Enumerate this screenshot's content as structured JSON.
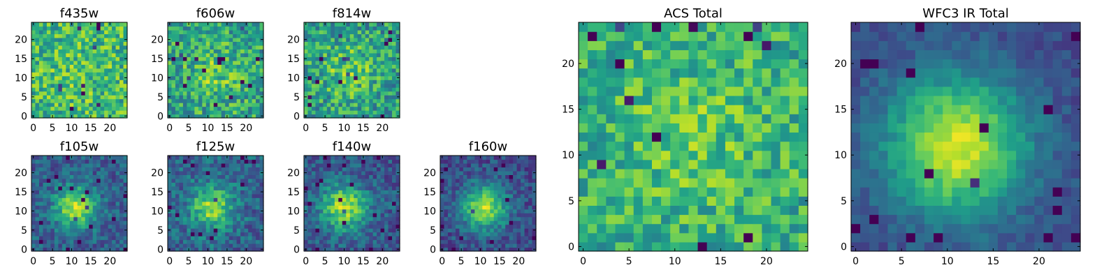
{
  "chart_data": [
    {
      "type": "heatmap",
      "title": "f435w",
      "pattern": "noise",
      "seed": 11,
      "cx": 12,
      "cy": 12,
      "sigma": 6,
      "amp": 0.05,
      "noise": 0.24,
      "base": 0.66,
      "xlim": [
        0,
        24
      ],
      "ylim": [
        0,
        24
      ],
      "xticks": [
        0,
        5,
        10,
        15,
        20
      ],
      "yticks": [
        0,
        5,
        10,
        15,
        20
      ]
    },
    {
      "type": "heatmap",
      "title": "f606w",
      "pattern": "noise",
      "seed": 23,
      "cx": 12,
      "cy": 11,
      "sigma": 5,
      "amp": 0.16,
      "noise": 0.24,
      "base": 0.58,
      "xlim": [
        0,
        24
      ],
      "ylim": [
        0,
        24
      ],
      "xticks": [
        0,
        5,
        10,
        15,
        20
      ],
      "yticks": [
        0,
        5,
        10,
        15,
        20
      ]
    },
    {
      "type": "heatmap",
      "title": "f814w",
      "pattern": "noise",
      "seed": 37,
      "cx": 11,
      "cy": 12,
      "sigma": 5,
      "amp": 0.2,
      "noise": 0.24,
      "base": 0.55,
      "xlim": [
        0,
        24
      ],
      "ylim": [
        0,
        24
      ],
      "xticks": [
        0,
        5,
        10,
        15,
        20
      ],
      "yticks": [
        0,
        5,
        10,
        15,
        20
      ]
    },
    {
      "type": "heatmap",
      "title": "f105w",
      "pattern": "source",
      "seed": 41,
      "cx": 11,
      "cy": 11,
      "sigma": 3.8,
      "amp": 0.58,
      "noise": 0.15,
      "base": 0.3,
      "xlim": [
        0,
        24
      ],
      "ylim": [
        0,
        24
      ],
      "xticks": [
        0,
        5,
        10,
        15,
        20
      ],
      "yticks": [
        0,
        5,
        10,
        15,
        20
      ]
    },
    {
      "type": "heatmap",
      "title": "f125w",
      "pattern": "source",
      "seed": 53,
      "cx": 11,
      "cy": 11,
      "sigma": 3.8,
      "amp": 0.52,
      "noise": 0.17,
      "base": 0.33,
      "xlim": [
        0,
        24
      ],
      "ylim": [
        0,
        24
      ],
      "xticks": [
        0,
        5,
        10,
        15,
        20
      ],
      "yticks": [
        0,
        5,
        10,
        15,
        20
      ]
    },
    {
      "type": "heatmap",
      "title": "f140w",
      "pattern": "source",
      "seed": 67,
      "cx": 10,
      "cy": 11,
      "sigma": 4.2,
      "amp": 0.6,
      "noise": 0.15,
      "base": 0.28,
      "xlim": [
        0,
        24
      ],
      "ylim": [
        0,
        24
      ],
      "xticks": [
        0,
        5,
        10,
        15,
        20
      ],
      "yticks": [
        0,
        5,
        10,
        15,
        20
      ]
    },
    {
      "type": "heatmap",
      "title": "f160w",
      "pattern": "source",
      "seed": 79,
      "cx": 11,
      "cy": 11,
      "sigma": 4.0,
      "amp": 0.65,
      "noise": 0.14,
      "base": 0.24,
      "xlim": [
        0,
        24
      ],
      "ylim": [
        0,
        24
      ],
      "xticks": [
        0,
        5,
        10,
        15,
        20
      ],
      "yticks": [
        0,
        5,
        10,
        15,
        20
      ]
    },
    {
      "type": "heatmap",
      "title": "ACS Total",
      "pattern": "noise",
      "seed": 97,
      "cx": 12,
      "cy": 12,
      "sigma": 6,
      "amp": 0.12,
      "noise": 0.2,
      "base": 0.62,
      "xlim": [
        0,
        24
      ],
      "ylim": [
        0,
        24
      ],
      "xticks": [
        0,
        5,
        10,
        15,
        20
      ],
      "yticks": [
        0,
        5,
        10,
        15,
        20
      ]
    },
    {
      "type": "heatmap",
      "title": "WFC3 IR Total",
      "pattern": "source",
      "seed": 113,
      "cx": 11,
      "cy": 11,
      "sigma": 5.5,
      "amp": 0.72,
      "noise": 0.08,
      "base": 0.22,
      "xlim": [
        0,
        24
      ],
      "ylim": [
        0,
        24
      ],
      "xticks": [
        0,
        5,
        10,
        15,
        20
      ],
      "yticks": [
        0,
        5,
        10,
        15,
        20
      ]
    }
  ],
  "colormap": [
    "#440154",
    "#482878",
    "#3e4989",
    "#31688e",
    "#26828e",
    "#1f9e89",
    "#35b779",
    "#6ece58",
    "#b5de2b",
    "#fde725"
  ]
}
